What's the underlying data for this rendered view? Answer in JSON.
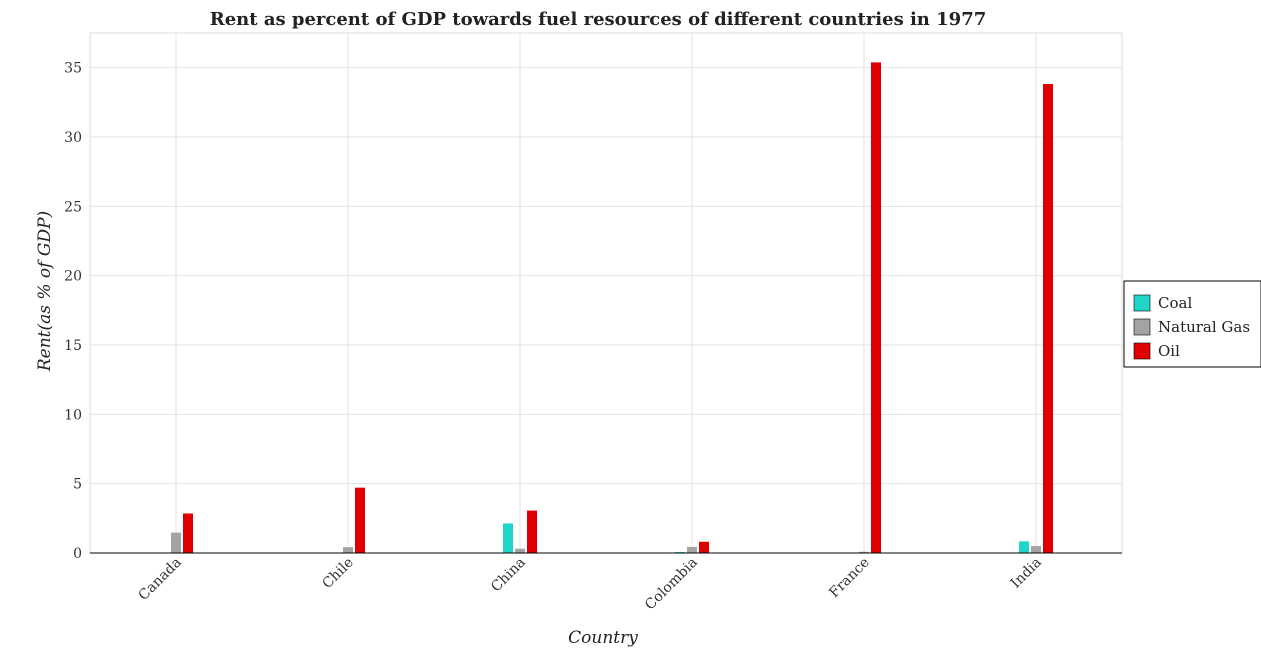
{
  "colors": {
    "Coal": "#1fd6c8",
    "Natural Gas": "#a3a3a3",
    "Oil": "#e00000"
  },
  "chart_data": {
    "type": "bar",
    "title": "Rent as percent of GDP towards fuel resources of different countries in 1977",
    "xlabel": "Country",
    "ylabel": "Rent(as % of GDP)",
    "categories": [
      "Canada",
      "Chile",
      "China",
      "Colombia",
      "France",
      "India"
    ],
    "series": [
      {
        "name": "Coal",
        "values": [
          0.03,
          0.02,
          2.13,
          0.07,
          0.01,
          0.84
        ]
      },
      {
        "name": "Natural Gas",
        "values": [
          1.47,
          0.42,
          0.31,
          0.44,
          0.09,
          0.5
        ]
      },
      {
        "name": "Oil",
        "values": [
          2.85,
          4.71,
          3.06,
          0.81,
          35.38,
          33.82
        ]
      }
    ],
    "ylim": [
      0,
      37.5
    ],
    "yticks": [
      0,
      5,
      10,
      15,
      20,
      25,
      30,
      35
    ],
    "grid": true,
    "legend_position": "right"
  }
}
